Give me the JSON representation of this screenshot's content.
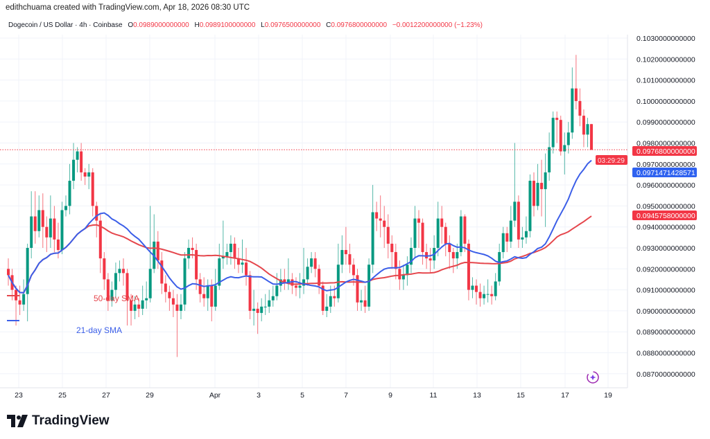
{
  "header": {
    "credit": "edithchuama created with TradingView.com, Apr 18, 2026 08:30 UTC"
  },
  "legend": {
    "symbol": "Dogecoin / US Dollar · 4h · Coinbase",
    "open_label": "O",
    "open": "0.0989000000000",
    "high_label": "H",
    "high": "0.0989100000000",
    "low_label": "L",
    "low": "0.0976500000000",
    "close_label": "C",
    "close": "0.0976800000000",
    "change": "−0.0012200000000 (−1.23%)"
  },
  "annotations": {
    "sma50": "50-day SMA",
    "sma21": "21-day SMA"
  },
  "price_labels": {
    "last_price": "0.0976800000000",
    "countdown": "03:29:29",
    "sma21_value": "0.0971471428571",
    "sma50_value": "0.0945758000000"
  },
  "brand": {
    "name": "TradingView"
  },
  "colors": {
    "up": "#089981",
    "down": "#f23645",
    "sma21": "#3b5ee8",
    "sma50": "#e5464c",
    "grid": "#f0f3fa"
  },
  "chart_data": {
    "type": "candlestick",
    "title": "Dogecoin / US Dollar · 4h · Coinbase",
    "ylim": [
      0.0865,
      0.1035
    ],
    "y_ticks": [
      "0.1030000000000",
      "0.1020000000000",
      "0.1010000000000",
      "0.1000000000000",
      "0.0990000000000",
      "0.0980000000000",
      "0.0970000000000",
      "0.0960000000000",
      "0.0950000000000",
      "0.0940000000000",
      "0.0930000000000",
      "0.0920000000000",
      "0.0910000000000",
      "0.0900000000000",
      "0.0890000000000",
      "0.0880000000000",
      "0.0870000000000"
    ],
    "y_tick_values": [
      0.103,
      0.102,
      0.101,
      0.1,
      0.099,
      0.098,
      0.097,
      0.096,
      0.095,
      0.094,
      0.093,
      0.092,
      0.091,
      0.09,
      0.089,
      0.088,
      0.087
    ],
    "x_ticks": [
      "23",
      "25",
      "27",
      "29",
      "Apr",
      "3",
      "5",
      "7",
      "9",
      "11",
      "13",
      "15",
      "17",
      "19"
    ],
    "grid": true,
    "ohlc": [
      [
        0.092,
        0.0925,
        0.0912,
        0.0917
      ],
      [
        0.0917,
        0.092,
        0.0905,
        0.091
      ],
      [
        0.091,
        0.0912,
        0.0893,
        0.0905
      ],
      [
        0.0905,
        0.0912,
        0.0898,
        0.0903
      ],
      [
        0.0903,
        0.0915,
        0.09,
        0.0908
      ],
      [
        0.0908,
        0.0932,
        0.0895,
        0.093
      ],
      [
        0.093,
        0.0957,
        0.0925,
        0.0945
      ],
      [
        0.0945,
        0.0957,
        0.0932,
        0.0938
      ],
      [
        0.0938,
        0.0955,
        0.0935,
        0.0948
      ],
      [
        0.0948,
        0.0956,
        0.093,
        0.094
      ],
      [
        0.094,
        0.0945,
        0.0928,
        0.0935
      ],
      [
        0.0935,
        0.0955,
        0.093,
        0.0944
      ],
      [
        0.0944,
        0.095,
        0.0928,
        0.0934
      ],
      [
        0.0934,
        0.0942,
        0.0925,
        0.0929
      ],
      [
        0.0929,
        0.0952,
        0.0927,
        0.0948
      ],
      [
        0.0948,
        0.0955,
        0.0945,
        0.095
      ],
      [
        0.095,
        0.097,
        0.0946,
        0.0962
      ],
      [
        0.0962,
        0.098,
        0.0958,
        0.0972
      ],
      [
        0.0972,
        0.0978,
        0.0966,
        0.0976
      ],
      [
        0.0976,
        0.098,
        0.0962,
        0.0966
      ],
      [
        0.0966,
        0.0968,
        0.096,
        0.0964
      ],
      [
        0.0964,
        0.097,
        0.0958,
        0.0966
      ],
      [
        0.0966,
        0.0968,
        0.0945,
        0.095
      ],
      [
        0.095,
        0.0952,
        0.0935,
        0.0943
      ],
      [
        0.0943,
        0.0946,
        0.0918,
        0.0925
      ],
      [
        0.0925,
        0.0928,
        0.091,
        0.0915
      ],
      [
        0.0915,
        0.0918,
        0.09,
        0.0905
      ],
      [
        0.0905,
        0.0914,
        0.0902,
        0.091
      ],
      [
        0.091,
        0.0923,
        0.0906,
        0.0918
      ],
      [
        0.0918,
        0.0924,
        0.0914,
        0.092
      ],
      [
        0.092,
        0.0925,
        0.0912,
        0.0918
      ],
      [
        0.0918,
        0.092,
        0.0893,
        0.0905
      ],
      [
        0.0905,
        0.0908,
        0.0893,
        0.09
      ],
      [
        0.09,
        0.0907,
        0.0896,
        0.0903
      ],
      [
        0.0903,
        0.0906,
        0.0897,
        0.0901
      ],
      [
        0.0901,
        0.0912,
        0.0898,
        0.0905
      ],
      [
        0.0905,
        0.0914,
        0.0901,
        0.0906
      ],
      [
        0.0906,
        0.095,
        0.0904,
        0.092
      ],
      [
        0.092,
        0.0946,
        0.0918,
        0.0933
      ],
      [
        0.0933,
        0.0938,
        0.092,
        0.0924
      ],
      [
        0.0924,
        0.0928,
        0.0908,
        0.0913
      ],
      [
        0.0913,
        0.0917,
        0.0904,
        0.0909
      ],
      [
        0.0909,
        0.0912,
        0.09,
        0.0906
      ],
      [
        0.0906,
        0.091,
        0.0897,
        0.0903
      ],
      [
        0.0903,
        0.0908,
        0.0878,
        0.09
      ],
      [
        0.09,
        0.0908,
        0.0896,
        0.0903
      ],
      [
        0.0903,
        0.0928,
        0.09,
        0.0925
      ],
      [
        0.0925,
        0.0934,
        0.092,
        0.093
      ],
      [
        0.093,
        0.0935,
        0.0925,
        0.0929
      ],
      [
        0.0929,
        0.0932,
        0.091,
        0.0915
      ],
      [
        0.0915,
        0.0918,
        0.0904,
        0.0908
      ],
      [
        0.0908,
        0.0916,
        0.0902,
        0.0906
      ],
      [
        0.0906,
        0.0915,
        0.09,
        0.0912
      ],
      [
        0.0912,
        0.0915,
        0.0895,
        0.0902
      ],
      [
        0.0902,
        0.092,
        0.09,
        0.0912
      ],
      [
        0.0912,
        0.0932,
        0.091,
        0.0925
      ],
      [
        0.0925,
        0.0943,
        0.092,
        0.0926
      ],
      [
        0.0926,
        0.0932,
        0.0922,
        0.0928
      ],
      [
        0.0928,
        0.0936,
        0.0922,
        0.0932
      ],
      [
        0.0932,
        0.0935,
        0.092,
        0.0925
      ],
      [
        0.0925,
        0.093,
        0.0918,
        0.0922
      ],
      [
        0.0922,
        0.0934,
        0.0918,
        0.0923
      ],
      [
        0.0923,
        0.093,
        0.0912,
        0.0917
      ],
      [
        0.0917,
        0.0919,
        0.0896,
        0.09
      ],
      [
        0.09,
        0.091,
        0.0893,
        0.0901
      ],
      [
        0.0901,
        0.0904,
        0.0889,
        0.0899
      ],
      [
        0.0899,
        0.0906,
        0.0895,
        0.0902
      ],
      [
        0.0902,
        0.0908,
        0.0898,
        0.0902
      ],
      [
        0.0902,
        0.091,
        0.0899,
        0.0905
      ],
      [
        0.0905,
        0.0912,
        0.0902,
        0.0907
      ],
      [
        0.0907,
        0.0918,
        0.0905,
        0.0912
      ],
      [
        0.0912,
        0.092,
        0.0909,
        0.0915
      ],
      [
        0.0915,
        0.092,
        0.091,
        0.0913
      ],
      [
        0.0913,
        0.0925,
        0.091,
        0.0915
      ],
      [
        0.0915,
        0.0918,
        0.0908,
        0.0912
      ],
      [
        0.0912,
        0.0916,
        0.0907,
        0.0911
      ],
      [
        0.0911,
        0.0918,
        0.0906,
        0.0912
      ],
      [
        0.0912,
        0.093,
        0.0908,
        0.0915
      ],
      [
        0.0915,
        0.0925,
        0.0912,
        0.0921
      ],
      [
        0.0921,
        0.0928,
        0.0918,
        0.0925
      ],
      [
        0.0925,
        0.0928,
        0.0916,
        0.092
      ],
      [
        0.092,
        0.0922,
        0.0908,
        0.0912
      ],
      [
        0.0912,
        0.0914,
        0.0898,
        0.09
      ],
      [
        0.09,
        0.0908,
        0.0897,
        0.0902
      ],
      [
        0.0902,
        0.0912,
        0.0899,
        0.0907
      ],
      [
        0.0907,
        0.0912,
        0.0902,
        0.0906
      ],
      [
        0.0906,
        0.0932,
        0.0904,
        0.0922
      ],
      [
        0.0922,
        0.0936,
        0.0918,
        0.0929
      ],
      [
        0.0929,
        0.094,
        0.0922,
        0.0927
      ],
      [
        0.0927,
        0.0932,
        0.0918,
        0.0922
      ],
      [
        0.0922,
        0.0925,
        0.0912,
        0.0917
      ],
      [
        0.0917,
        0.092,
        0.09,
        0.0904
      ],
      [
        0.0904,
        0.091,
        0.09,
        0.0905
      ],
      [
        0.0905,
        0.0912,
        0.0899,
        0.0902
      ],
      [
        0.0902,
        0.0925,
        0.09,
        0.0922
      ],
      [
        0.0922,
        0.096,
        0.0918,
        0.0947
      ],
      [
        0.0947,
        0.0952,
        0.0938,
        0.0944
      ],
      [
        0.0944,
        0.0955,
        0.0935,
        0.0943
      ],
      [
        0.0943,
        0.095,
        0.093,
        0.094
      ],
      [
        0.094,
        0.0946,
        0.0925,
        0.0932
      ],
      [
        0.0932,
        0.0936,
        0.092,
        0.0928
      ],
      [
        0.0928,
        0.0932,
        0.0915,
        0.092
      ],
      [
        0.092,
        0.0924,
        0.091,
        0.0915
      ],
      [
        0.0915,
        0.0922,
        0.091,
        0.0917
      ],
      [
        0.0917,
        0.0926,
        0.0912,
        0.0922
      ],
      [
        0.0922,
        0.0935,
        0.0918,
        0.093
      ],
      [
        0.093,
        0.095,
        0.0925,
        0.0944
      ],
      [
        0.0944,
        0.0948,
        0.093,
        0.0942
      ],
      [
        0.0942,
        0.0944,
        0.0922,
        0.0928
      ],
      [
        0.0928,
        0.0932,
        0.092,
        0.0925
      ],
      [
        0.0925,
        0.093,
        0.0918,
        0.0924
      ],
      [
        0.0924,
        0.0936,
        0.092,
        0.093
      ],
      [
        0.093,
        0.0952,
        0.0926,
        0.0944
      ],
      [
        0.0944,
        0.095,
        0.0932,
        0.094
      ],
      [
        0.094,
        0.0942,
        0.0926,
        0.0932
      ],
      [
        0.0932,
        0.0936,
        0.092,
        0.0928
      ],
      [
        0.0928,
        0.093,
        0.0918,
        0.0925
      ],
      [
        0.0925,
        0.0932,
        0.092,
        0.0928
      ],
      [
        0.0928,
        0.0948,
        0.0926,
        0.0945
      ],
      [
        0.0945,
        0.0946,
        0.0928,
        0.0932
      ],
      [
        0.0932,
        0.0934,
        0.0905,
        0.091
      ],
      [
        0.091,
        0.0916,
        0.0906,
        0.0912
      ],
      [
        0.0912,
        0.0915,
        0.0903,
        0.0909
      ],
      [
        0.0909,
        0.0913,
        0.0902,
        0.0906
      ],
      [
        0.0906,
        0.0912,
        0.0903,
        0.0908
      ],
      [
        0.0908,
        0.0915,
        0.0904,
        0.0908
      ],
      [
        0.0908,
        0.0912,
        0.0903,
        0.0907
      ],
      [
        0.0907,
        0.0918,
        0.0905,
        0.0914
      ],
      [
        0.0914,
        0.0932,
        0.0912,
        0.0928
      ],
      [
        0.0928,
        0.094,
        0.0925,
        0.0937
      ],
      [
        0.0937,
        0.094,
        0.0928,
        0.0933
      ],
      [
        0.0933,
        0.095,
        0.093,
        0.0943
      ],
      [
        0.0943,
        0.098,
        0.094,
        0.0952
      ],
      [
        0.0952,
        0.0955,
        0.093,
        0.0934
      ],
      [
        0.0934,
        0.094,
        0.093,
        0.0935
      ],
      [
        0.0935,
        0.0945,
        0.0932,
        0.0938
      ],
      [
        0.0938,
        0.0965,
        0.0935,
        0.0962
      ],
      [
        0.0962,
        0.0966,
        0.0945,
        0.095
      ],
      [
        0.095,
        0.097,
        0.0948,
        0.0961
      ],
      [
        0.0961,
        0.0972,
        0.0945,
        0.0958
      ],
      [
        0.0958,
        0.0975,
        0.094,
        0.0966
      ],
      [
        0.0966,
        0.0985,
        0.0962,
        0.0978
      ],
      [
        0.0978,
        0.0995,
        0.0975,
        0.0992
      ],
      [
        0.0992,
        0.0995,
        0.098,
        0.0991
      ],
      [
        0.0991,
        0.0993,
        0.0974,
        0.0976
      ],
      [
        0.0976,
        0.0985,
        0.0965,
        0.0979
      ],
      [
        0.0979,
        0.099,
        0.0975,
        0.0985
      ],
      [
        0.0985,
        0.1016,
        0.0982,
        0.1006
      ],
      [
        0.1006,
        0.1022,
        0.0996,
        0.1
      ],
      [
        0.1,
        0.1006,
        0.0988,
        0.0993
      ],
      [
        0.0993,
        0.0996,
        0.0978,
        0.0984
      ],
      [
        0.0984,
        0.0992,
        0.0978,
        0.0989
      ],
      [
        0.0989,
        0.09891,
        0.09765,
        0.09768
      ]
    ],
    "series": [
      {
        "name": "21-day SMA",
        "period": 21,
        "last_value": 0.0971471428571
      },
      {
        "name": "50-day SMA",
        "period": 50,
        "last_value": 0.0945758
      }
    ]
  }
}
